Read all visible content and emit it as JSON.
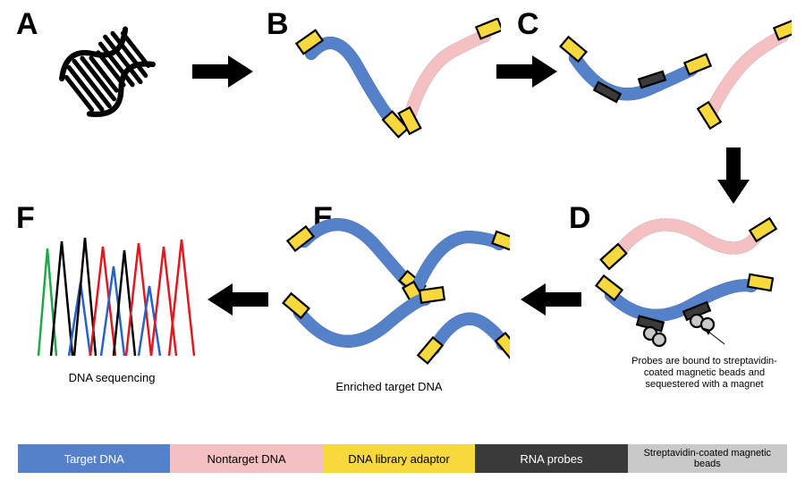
{
  "labels": {
    "A": "A",
    "B": "B",
    "C": "C",
    "D": "D",
    "E": "E",
    "F": "F"
  },
  "captions": {
    "F": "DNA sequencing",
    "E": "Enriched target DNA",
    "D": "Probes are bound to streptavidin-coated magnetic beads and sequestered with a magnet"
  },
  "colors": {
    "target_dna": "#5581c8",
    "nontarget_dna": "#f4c0c2",
    "adaptor": "#f7d93e",
    "rna_probes": "#3a3a3a",
    "beads_fill": "#c9c9c9",
    "stroke": "#000000",
    "arrow": "#000000",
    "legend_text_white": "#ffffff",
    "legend_text_black": "#000000",
    "helix": "#000000",
    "seq_green": "#1fa848",
    "seq_black": "#000000",
    "seq_red": "#e3171f",
    "seq_blue": "#2563c9"
  },
  "legend": [
    {
      "label": "Target DNA",
      "bg_key": "target_dna",
      "fg_key": "legend_text_white"
    },
    {
      "label": "Nontarget DNA",
      "bg_key": "nontarget_dna",
      "fg_key": "legend_text_black"
    },
    {
      "label": "DNA library adaptor",
      "bg_key": "adaptor",
      "fg_key": "legend_text_black"
    },
    {
      "label": "RNA probes",
      "bg_key": "rna_probes",
      "fg_key": "legend_text_white"
    },
    {
      "label": "Streptavidin-coated magnetic beads",
      "bg_key": "beads_fill",
      "fg_key": "legend_text_black",
      "small": true
    }
  ],
  "style": {
    "strand_width": 14,
    "adaptor_w": 26,
    "adaptor_h": 14,
    "probe_w": 28,
    "probe_h": 10,
    "stroke_w": 2.2,
    "panel_label_fontsize": 34,
    "caption_fontsize": 13,
    "caption_small_fontsize": 11
  }
}
